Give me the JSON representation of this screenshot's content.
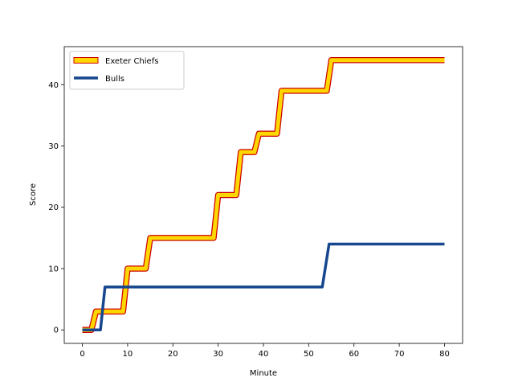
{
  "chart_data": {
    "type": "line",
    "xlabel": "Minute",
    "ylabel": "Score",
    "xlim": [
      -4,
      84
    ],
    "ylim": [
      -2.2,
      46.2
    ],
    "xticks": [
      0,
      10,
      20,
      30,
      40,
      50,
      60,
      70,
      80
    ],
    "yticks": [
      0,
      10,
      20,
      30,
      40
    ],
    "legend_position": "upper-left",
    "series": [
      {
        "name": "Exeter Chiefs",
        "style": "gold-line-with-red-edge",
        "color": "#FFD700",
        "edge_color": "#CC0000",
        "points": [
          [
            0,
            0
          ],
          [
            2,
            0
          ],
          [
            3,
            3
          ],
          [
            9,
            3
          ],
          [
            10,
            10
          ],
          [
            14,
            10
          ],
          [
            15,
            15
          ],
          [
            29,
            15
          ],
          [
            30,
            22
          ],
          [
            34,
            22
          ],
          [
            35,
            29
          ],
          [
            38,
            29
          ],
          [
            39,
            32
          ],
          [
            43,
            32
          ],
          [
            44,
            39
          ],
          [
            54,
            39
          ],
          [
            55,
            44
          ],
          [
            80,
            44
          ]
        ]
      },
      {
        "name": "Bulls",
        "style": "solid",
        "color": "#17478E",
        "points": [
          [
            0,
            0
          ],
          [
            4,
            0
          ],
          [
            5,
            7
          ],
          [
            53,
            7
          ],
          [
            54.5,
            14
          ],
          [
            80,
            14
          ]
        ]
      }
    ]
  }
}
